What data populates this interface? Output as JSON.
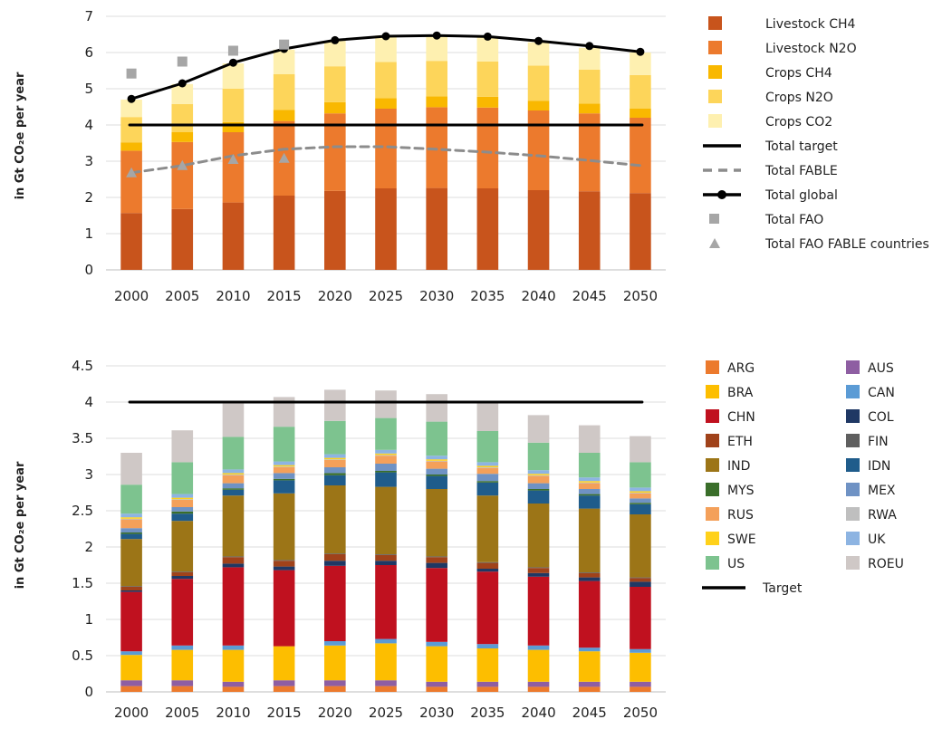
{
  "charts": [
    {
      "type": "bar",
      "stacked": true,
      "ylabel": "in Gt CO₂e per year",
      "ylim": [
        0,
        7
      ],
      "yticks": [
        0,
        1,
        2,
        3,
        4,
        5,
        6,
        7
      ],
      "grid": true,
      "legend_position": "right",
      "categories": [
        "2000",
        "2005",
        "2010",
        "2015",
        "2020",
        "2025",
        "2030",
        "2035",
        "2040",
        "2045",
        "2050"
      ],
      "series": [
        {
          "name": "Livestock CH4",
          "color": "#C8541C",
          "values": [
            1.57,
            1.68,
            1.86,
            2.05,
            2.18,
            2.25,
            2.26,
            2.25,
            2.2,
            2.17,
            2.12
          ]
        },
        {
          "name": "Livestock N2O",
          "color": "#EC7A2D",
          "values": [
            1.72,
            1.85,
            1.94,
            2.06,
            2.14,
            2.2,
            2.23,
            2.23,
            2.2,
            2.15,
            2.08
          ]
        },
        {
          "name": "Crops CH4",
          "color": "#F9B800",
          "values": [
            0.23,
            0.27,
            0.28,
            0.31,
            0.31,
            0.29,
            0.3,
            0.3,
            0.27,
            0.27,
            0.25
          ]
        },
        {
          "name": "Crops N2O",
          "color": "#FDD55A",
          "values": [
            0.7,
            0.78,
            0.92,
            0.98,
            0.99,
            1.0,
            0.98,
            0.97,
            0.97,
            0.94,
            0.93
          ]
        },
        {
          "name": "Crops CO2",
          "color": "#FEF0B0",
          "values": [
            0.48,
            0.55,
            0.7,
            0.68,
            0.7,
            0.73,
            0.7,
            0.7,
            0.64,
            0.6,
            0.62
          ]
        }
      ],
      "lines": [
        {
          "name": "Total target",
          "style": "solid",
          "color": "#000000",
          "values": [
            4,
            4,
            4,
            4,
            4,
            4,
            4,
            4,
            4,
            4,
            4
          ]
        },
        {
          "name": "Total FABLE",
          "style": "dashed",
          "color": "#8C8C8C",
          "values": [
            2.68,
            2.88,
            3.15,
            3.33,
            3.4,
            3.4,
            3.33,
            3.25,
            3.15,
            3.02,
            2.88
          ]
        },
        {
          "name": "Total global",
          "style": "solid-marker",
          "color": "#000000",
          "values": [
            4.72,
            5.15,
            5.72,
            6.1,
            6.34,
            6.45,
            6.47,
            6.44,
            6.32,
            6.18,
            6.02
          ]
        }
      ],
      "markers": [
        {
          "name": "Total FAO",
          "shape": "square",
          "color": "#A6A6A6",
          "values": [
            5.42,
            5.75,
            6.05,
            6.22,
            null,
            null,
            null,
            null,
            null,
            null,
            null
          ]
        },
        {
          "name": "Total FAO FABLE countries",
          "shape": "triangle",
          "color": "#A6A6A6",
          "values": [
            2.68,
            2.88,
            3.05,
            3.08,
            null,
            null,
            null,
            null,
            null,
            null,
            null
          ]
        }
      ]
    },
    {
      "type": "bar",
      "stacked": true,
      "ylabel": "in Gt CO₂e per year",
      "ylim": [
        0,
        4.5
      ],
      "yticks": [
        0,
        0.5,
        1,
        1.5,
        2,
        2.5,
        3,
        3.5,
        4,
        4.5
      ],
      "grid": true,
      "legend_position": "right",
      "categories": [
        "2000",
        "2005",
        "2010",
        "2015",
        "2020",
        "2025",
        "2030",
        "2035",
        "2040",
        "2045",
        "2050"
      ],
      "series": [
        {
          "name": "ARG",
          "color": "#EC7A2D",
          "values": [
            0.08,
            0.08,
            0.07,
            0.08,
            0.08,
            0.08,
            0.07,
            0.07,
            0.07,
            0.07,
            0.07
          ]
        },
        {
          "name": "AUS",
          "color": "#8E5EA2",
          "values": [
            0.08,
            0.08,
            0.07,
            0.08,
            0.08,
            0.08,
            0.07,
            0.07,
            0.07,
            0.07,
            0.07
          ]
        },
        {
          "name": "BRA",
          "color": "#FDBE00",
          "values": [
            0.35,
            0.42,
            0.44,
            0.47,
            0.48,
            0.51,
            0.49,
            0.46,
            0.44,
            0.42,
            0.4
          ]
        },
        {
          "name": "CAN",
          "color": "#5B9BD5",
          "values": [
            0.05,
            0.06,
            0.06,
            0.0,
            0.06,
            0.06,
            0.06,
            0.06,
            0.06,
            0.05,
            0.05
          ]
        },
        {
          "name": "CHN",
          "color": "#C0111F",
          "values": [
            0.82,
            0.92,
            1.08,
            1.05,
            1.04,
            1.02,
            1.02,
            1.0,
            0.95,
            0.92,
            0.86
          ]
        },
        {
          "name": "COL",
          "color": "#1F3864",
          "values": [
            0.02,
            0.04,
            0.05,
            0.05,
            0.07,
            0.06,
            0.07,
            0.04,
            0.05,
            0.05,
            0.07
          ]
        },
        {
          "name": "ETH",
          "color": "#A0421A",
          "values": [
            0.05,
            0.05,
            0.09,
            0.08,
            0.09,
            0.08,
            0.08,
            0.08,
            0.07,
            0.06,
            0.05
          ]
        },
        {
          "name": "FIN",
          "color": "#5F5F5F",
          "values": [
            0.01,
            0.01,
            0.01,
            0.01,
            0.01,
            0.01,
            0.01,
            0.01,
            0.01,
            0.01,
            0.01
          ]
        },
        {
          "name": "IND",
          "color": "#9C7517",
          "values": [
            0.65,
            0.7,
            0.84,
            0.92,
            0.94,
            0.93,
            0.93,
            0.92,
            0.88,
            0.88,
            0.87
          ]
        },
        {
          "name": "IDN",
          "color": "#1F5C8B",
          "values": [
            0.07,
            0.1,
            0.08,
            0.18,
            0.14,
            0.2,
            0.18,
            0.18,
            0.18,
            0.18,
            0.14
          ]
        },
        {
          "name": "MYS",
          "color": "#3A6E2A",
          "values": [
            0.02,
            0.03,
            0.02,
            0.02,
            0.03,
            0.02,
            0.02,
            0.02,
            0.02,
            0.02,
            0.02
          ]
        },
        {
          "name": "MEX",
          "color": "#6F92C4",
          "values": [
            0.06,
            0.06,
            0.07,
            0.08,
            0.08,
            0.1,
            0.08,
            0.1,
            0.08,
            0.07,
            0.06
          ]
        },
        {
          "name": "RUS",
          "color": "#F4A05A",
          "values": [
            0.12,
            0.1,
            0.11,
            0.08,
            0.1,
            0.11,
            0.1,
            0.08,
            0.1,
            0.08,
            0.07
          ]
        },
        {
          "name": "RWA",
          "color": "#BFBFBF",
          "values": [
            0.01,
            0.01,
            0.01,
            0.01,
            0.01,
            0.01,
            0.01,
            0.01,
            0.01,
            0.01,
            0.01
          ]
        },
        {
          "name": "SWE",
          "color": "#FFD11A",
          "values": [
            0.02,
            0.02,
            0.02,
            0.02,
            0.02,
            0.02,
            0.02,
            0.02,
            0.02,
            0.02,
            0.02
          ]
        },
        {
          "name": "UK",
          "color": "#8DB4E2",
          "values": [
            0.05,
            0.05,
            0.05,
            0.05,
            0.05,
            0.05,
            0.05,
            0.05,
            0.05,
            0.05,
            0.05
          ]
        },
        {
          "name": "US",
          "color": "#7DC38F",
          "values": [
            0.4,
            0.44,
            0.45,
            0.48,
            0.46,
            0.44,
            0.47,
            0.43,
            0.38,
            0.34,
            0.35
          ]
        },
        {
          "name": "ROEU",
          "color": "#CFC8C6",
          "values": [
            0.44,
            0.44,
            0.46,
            0.41,
            0.43,
            0.38,
            0.38,
            0.39,
            0.38,
            0.38,
            0.36
          ]
        }
      ],
      "lines": [
        {
          "name": "Target",
          "style": "solid",
          "color": "#000000",
          "values": [
            4,
            4,
            4,
            4,
            4,
            4,
            4,
            4,
            4,
            4,
            4
          ]
        }
      ],
      "markers": []
    }
  ]
}
